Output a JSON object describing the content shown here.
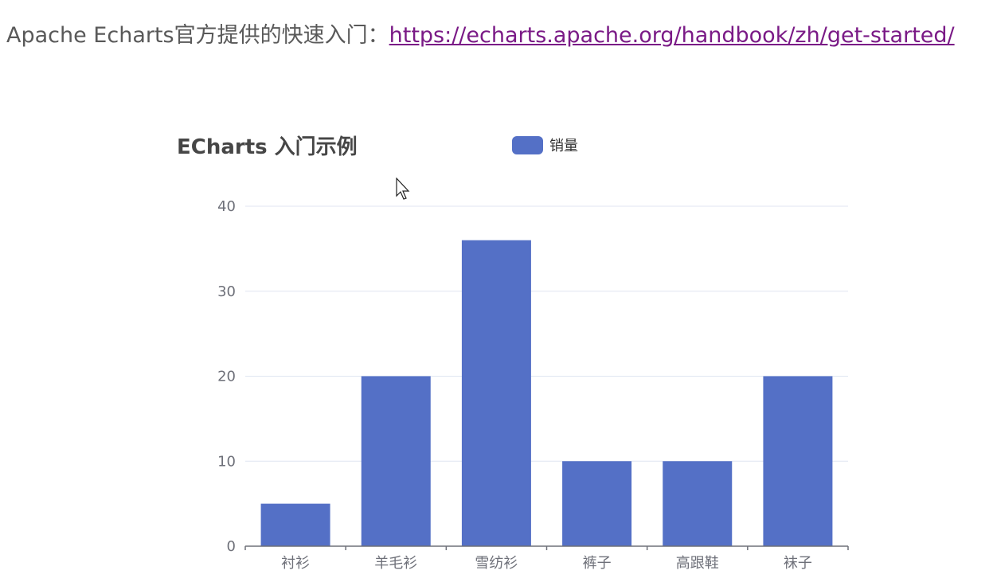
{
  "intro": {
    "text": "Apache Echarts官方提供的快速入门：",
    "link": "https://echarts.apache.org/handbook/zh/get-started/"
  },
  "colors": {
    "bar": "#5470c6",
    "axis": "#6e7079",
    "grid": "#e0e6f1",
    "link": "#7a1a86"
  },
  "chart_data": {
    "type": "bar",
    "title": "ECharts 入门示例",
    "categories": [
      "衬衫",
      "羊毛衫",
      "雪纺衫",
      "裤子",
      "高跟鞋",
      "袜子"
    ],
    "series": [
      {
        "name": "销量",
        "values": [
          5,
          20,
          36,
          10,
          10,
          20
        ]
      }
    ],
    "ylim": [
      0,
      40
    ],
    "yticks": [
      0,
      10,
      20,
      30,
      40
    ],
    "grid": true,
    "legend": "top-center"
  }
}
